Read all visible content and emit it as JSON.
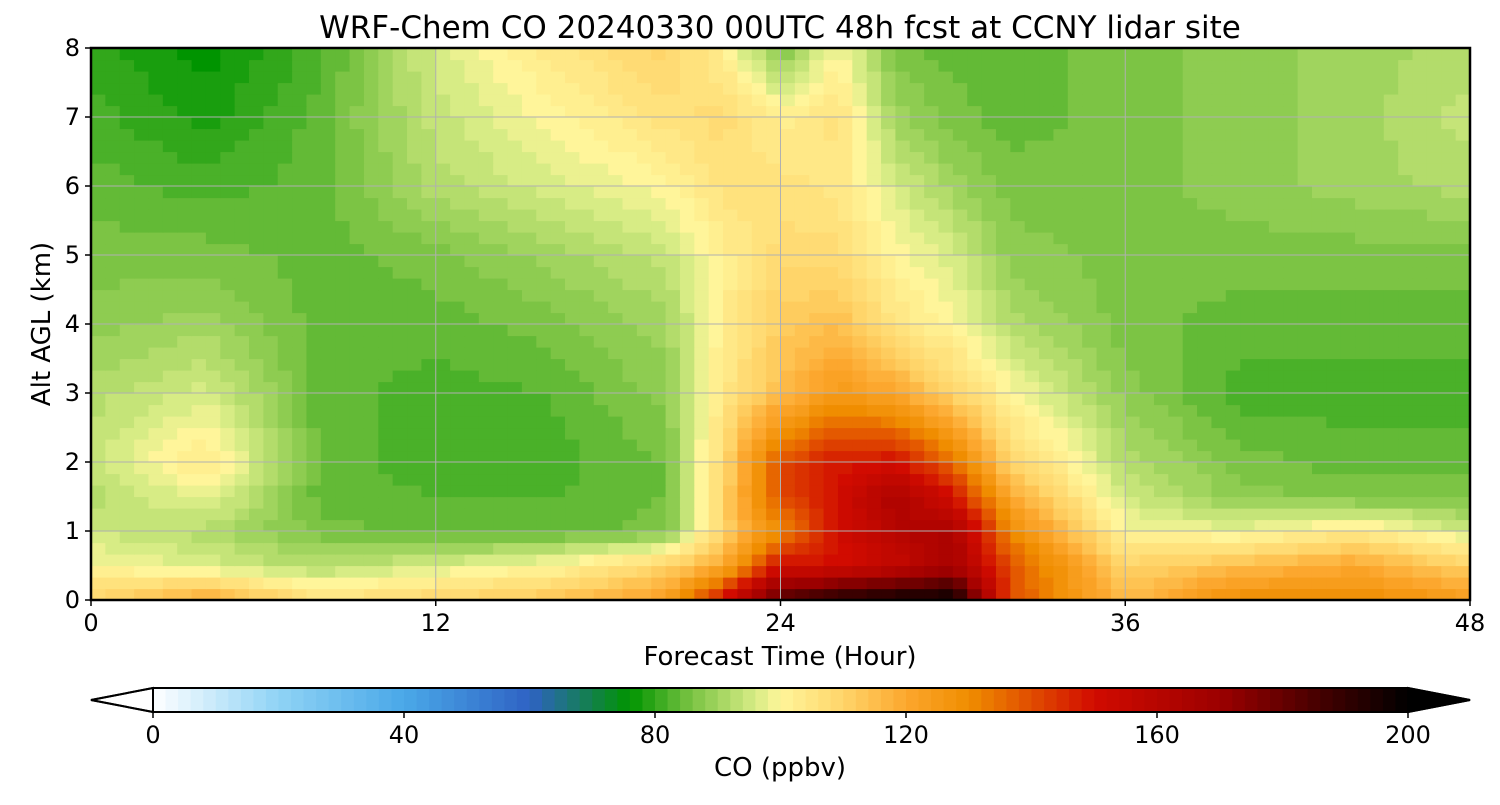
{
  "chart_data": {
    "type": "heatmap",
    "title": "WRF-Chem CO  20240330 00UTC 48h fcst at CCNY lidar site",
    "xlabel": "Forecast Time (Hour)",
    "ylabel": "Alt AGL (km)",
    "xlim": [
      0,
      48
    ],
    "ylim": [
      0,
      8
    ],
    "xticks": [
      0,
      12,
      24,
      36,
      48
    ],
    "yticks": [
      0,
      1,
      2,
      3,
      4,
      5,
      6,
      7,
      8
    ],
    "grid": true,
    "x": [
      0,
      4,
      8,
      12,
      16,
      20,
      22,
      24,
      26,
      28,
      30,
      32,
      36,
      40,
      44,
      48
    ],
    "y": [
      0,
      0.5,
      1,
      1.5,
      2,
      3,
      4,
      5,
      6,
      7,
      8
    ],
    "z": [
      [
        110,
        120,
        106,
        110,
        114,
        122,
        150,
        185,
        195,
        198,
        200,
        140,
        115,
        130,
        130,
        125
      ],
      [
        100,
        96,
        92,
        96,
        100,
        110,
        120,
        150,
        150,
        155,
        165,
        140,
        110,
        115,
        120,
        110
      ],
      [
        95,
        92,
        86,
        84,
        84,
        86,
        110,
        130,
        150,
        160,
        165,
        130,
        100,
        98,
        104,
        95
      ],
      [
        92,
        98,
        84,
        83,
        83,
        85,
        110,
        140,
        150,
        165,
        150,
        120,
        95,
        88,
        86,
        86
      ],
      [
        94,
        104,
        84,
        82,
        82,
        85,
        108,
        140,
        148,
        150,
        135,
        110,
        92,
        86,
        84,
        84
      ],
      [
        92,
        96,
        84,
        82,
        83,
        88,
        104,
        115,
        125,
        120,
        110,
        100,
        88,
        82,
        82,
        82
      ],
      [
        88,
        90,
        84,
        84,
        86,
        90,
        102,
        112,
        115,
        105,
        100,
        92,
        86,
        84,
        84,
        84
      ],
      [
        86,
        86,
        84,
        86,
        90,
        94,
        102,
        108,
        108,
        100,
        96,
        88,
        86,
        86,
        86,
        86
      ],
      [
        84,
        82,
        84,
        92,
        96,
        100,
        106,
        106,
        104,
        96,
        90,
        86,
        86,
        88,
        90,
        92
      ],
      [
        82,
        78,
        84,
        94,
        100,
        106,
        108,
        102,
        106,
        90,
        86,
        84,
        86,
        88,
        90,
        94
      ],
      [
        80,
        76,
        82,
        96,
        104,
        110,
        102,
        86,
        100,
        86,
        84,
        84,
        86,
        88,
        90,
        92
      ]
    ],
    "colorbar": {
      "label": "CO  (ppbv)",
      "min": 0,
      "max": 200,
      "ticks": [
        0,
        40,
        80,
        120,
        160,
        200
      ],
      "extend": "both",
      "colors": [
        {
          "v": 0,
          "c": "#ffffff"
        },
        {
          "v": 20,
          "c": "#8fd3f5"
        },
        {
          "v": 40,
          "c": "#4aa8e8"
        },
        {
          "v": 60,
          "c": "#2f62c4"
        },
        {
          "v": 76,
          "c": "#009400"
        },
        {
          "v": 86,
          "c": "#7cc444"
        },
        {
          "v": 96,
          "c": "#d7ec85"
        },
        {
          "v": 100,
          "c": "#fff59a"
        },
        {
          "v": 110,
          "c": "#ffd56a"
        },
        {
          "v": 120,
          "c": "#fca72e"
        },
        {
          "v": 130,
          "c": "#f08d00"
        },
        {
          "v": 150,
          "c": "#d10b00"
        },
        {
          "v": 170,
          "c": "#9c0000"
        },
        {
          "v": 185,
          "c": "#4a0000"
        },
        {
          "v": 200,
          "c": "#000000"
        }
      ]
    }
  }
}
